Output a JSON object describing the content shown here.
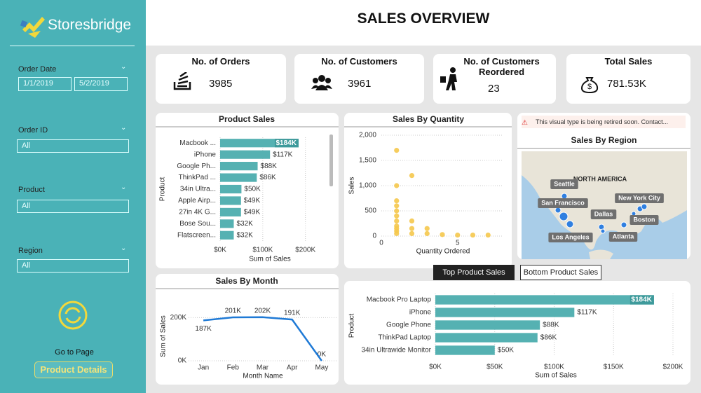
{
  "sidebar": {
    "logo": "Storesbridge",
    "filters": [
      {
        "label": "Order Date",
        "values": [
          "1/1/2019",
          "5/2/2019"
        ]
      },
      {
        "label": "Order ID",
        "value": "All"
      },
      {
        "label": "Product",
        "value": "All"
      },
      {
        "label": "Region",
        "value": "All"
      }
    ],
    "go_to_page": "Go to Page",
    "button": "Product Details"
  },
  "header": {
    "title": "SALES OVERVIEW"
  },
  "kpis": [
    {
      "label": "No. of Orders",
      "value": "3985"
    },
    {
      "label": "No. of Customers",
      "value": "3961"
    },
    {
      "label": "No. of Customers Reordered",
      "value": "23"
    },
    {
      "label": "Total Sales",
      "value": "781.53K"
    }
  ],
  "map": {
    "warning": "This visual type is being retired soon. Contact...",
    "title": "Sales By Region",
    "region_label": "NORTH AMERICA",
    "cities": [
      "Seattle",
      "San Francisco",
      "Dallas",
      "New York City",
      "Boston",
      "Los Angeles",
      "Atlanta"
    ]
  },
  "buttons": [
    "Top Product Sales",
    "Bottom Product Sales"
  ],
  "chart_data": [
    {
      "type": "hbar",
      "title": "Product Sales",
      "categories": [
        "Macbook ...",
        "iPhone",
        "Google Ph...",
        "ThinkPad ...",
        "34in Ultra...",
        "Apple Airp...",
        "27in 4K G...",
        "Bose Sou...",
        "Flatscreen..."
      ],
      "values": [
        184000,
        117000,
        88000,
        86000,
        50000,
        49000,
        49000,
        32000,
        32000
      ],
      "value_labels": [
        "$184K",
        "$117K",
        "$88K",
        "$86K",
        "$50K",
        "$49K",
        "$49K",
        "$32K",
        "$32K"
      ],
      "color": "#55b1b2",
      "xlim": [
        0,
        240000
      ],
      "xticks": [
        {
          "value": 0,
          "label": "$0K"
        },
        {
          "value": 100000,
          "label": "$100K"
        },
        {
          "value": 200000,
          "label": "$200K"
        }
      ],
      "x_label": "Sum of Sales",
      "y_label": "Product",
      "grid": true
    },
    {
      "type": "scatter",
      "title": "Sales By Quantity",
      "x": [
        1,
        1,
        1,
        1,
        1,
        1,
        1,
        1,
        1,
        1,
        1,
        2,
        2,
        2,
        2,
        3,
        3,
        4,
        5,
        6,
        7
      ],
      "values": [
        1700,
        1000,
        700,
        600,
        500,
        400,
        300,
        200,
        150,
        100,
        50,
        1200,
        300,
        150,
        50,
        150,
        50,
        30,
        20,
        20,
        20
      ],
      "color": "#f5c84c",
      "xlim": [
        0,
        8
      ],
      "xticks": [
        0,
        5
      ],
      "ylim": [
        0,
        2000
      ],
      "yticks": [
        0,
        500,
        {
          "value": 1000,
          "label": "1,000"
        },
        {
          "value": 1500,
          "label": "1,500"
        },
        {
          "value": 2000,
          "label": "2,000"
        }
      ],
      "x_label": "Quantity Ordered",
      "y_label": "Sales",
      "grid": true
    },
    {
      "type": "line",
      "title": "Sales By Month",
      "categories": [
        "Jan",
        "Feb",
        "Mar",
        "Apr",
        "May"
      ],
      "values": [
        187000,
        201000,
        202000,
        191000,
        0
      ],
      "value_labels": [
        "187K",
        "201K",
        "202K",
        "191K",
        "0K"
      ],
      "color": "#1f7ad6",
      "ylim": [
        0,
        240000
      ],
      "yticks": [
        {
          "value": 0,
          "label": "0K"
        },
        {
          "value": 200000,
          "label": "200K"
        }
      ],
      "x_label": "Month Name",
      "y_label": "Sum of Sales",
      "grid": true
    },
    {
      "type": "hbar",
      "categories": [
        "Macbook Pro Laptop",
        "iPhone",
        "Google Phone",
        "ThinkPad Laptop",
        "34in Ultrawide Monitor"
      ],
      "values": [
        184000,
        117000,
        88000,
        86000,
        50000
      ],
      "value_labels": [
        "$184K",
        "$117K",
        "$88K",
        "$86K",
        "$50K"
      ],
      "color": "#55b1b2",
      "xlim": [
        0,
        200000
      ],
      "xticks": [
        {
          "value": 0,
          "label": "$0K"
        },
        {
          "value": 50000,
          "label": "$50K"
        },
        {
          "value": 100000,
          "label": "$100K"
        },
        {
          "value": 150000,
          "label": "$150K"
        },
        {
          "value": 200000,
          "label": "$200K"
        }
      ],
      "x_label": "Sum of Sales",
      "y_label": "Product",
      "grid": true
    }
  ]
}
